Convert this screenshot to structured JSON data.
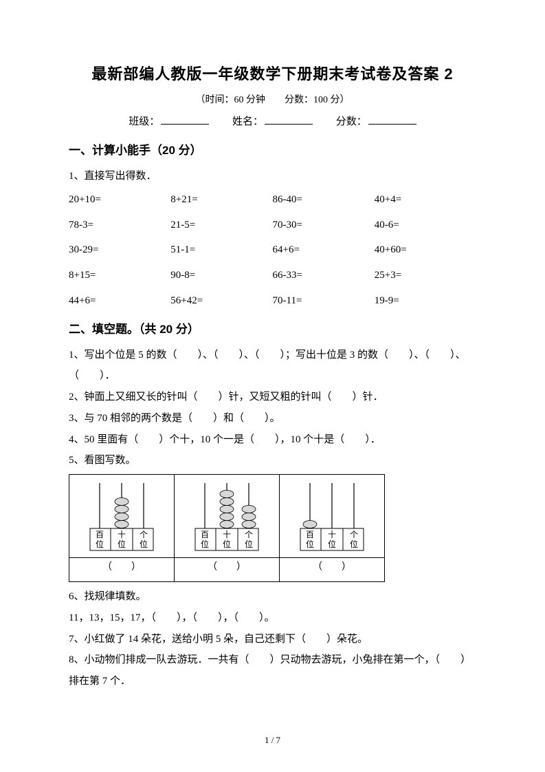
{
  "header": {
    "title": "最新部编人教版一年级数学下册期末考试卷及答案 2",
    "subtitle": "（时间：60 分钟　　分数：100 分）",
    "class_label": "班级：",
    "name_label": "姓名：",
    "score_label": "分数："
  },
  "sec1": {
    "heading": "一、计算小能手（20 分）",
    "q1_lead": "1、直接写出得数．",
    "rows": [
      [
        "20+10=",
        "8+21=",
        "86-40=",
        "40+4="
      ],
      [
        "78-3=",
        "21-5=",
        "70-30=",
        "40-6="
      ],
      [
        "30-29=",
        "51-1=",
        "64+6=",
        "40+60="
      ],
      [
        "8+15=",
        "90-8=",
        "66-33=",
        "25+3="
      ],
      [
        "44+6=",
        "56+42=",
        "70-11=",
        "19-9="
      ]
    ]
  },
  "sec2": {
    "heading": "二、填空题。（共 20 分）",
    "q1": "1、写出个位是 5 的数（　　）、（　　）、（　　）；写出十位是 3 的数（　　）、（　　）、（　　）．",
    "q2": "2、钟面上又细又长的针叫（　　）针，又短又粗的针叫（　　）针．",
    "q3": "3、与 70 相邻的两个数是（　　）和（　　）。",
    "q4": "4、50 里面有（　　）个十，10 个一是（　　），10 个十是（　　）．",
    "q5_lead": "5、看图写数。",
    "q5_answer_placeholder": "（　　）",
    "abacus": {
      "colors": {
        "bead": "#d7d7d7",
        "stroke": "#000",
        "bg": "#fff"
      },
      "col_labels": [
        "百",
        "十",
        "个"
      ],
      "col_labels2": [
        "位",
        "位",
        "位"
      ],
      "cells": [
        {
          "beads": [
            0,
            4,
            0
          ]
        },
        {
          "beads": [
            0,
            5,
            3
          ]
        },
        {
          "beads": [
            1,
            0,
            0
          ]
        }
      ]
    },
    "q6_lead": "6、找规律填数。",
    "q6_body": "11，13，15，17，（　　），（　　），（　　）。",
    "q7": "7、小红做了 14 朵花，送给小明 5 朵，自己还剩下（　　）朵花。",
    "q8": "8、小动物们排成一队去游玩．一共有（　　）只动物去游玩，小兔排在第一个，（　　）排在第 7 个．"
  },
  "footer": "1 / 7"
}
